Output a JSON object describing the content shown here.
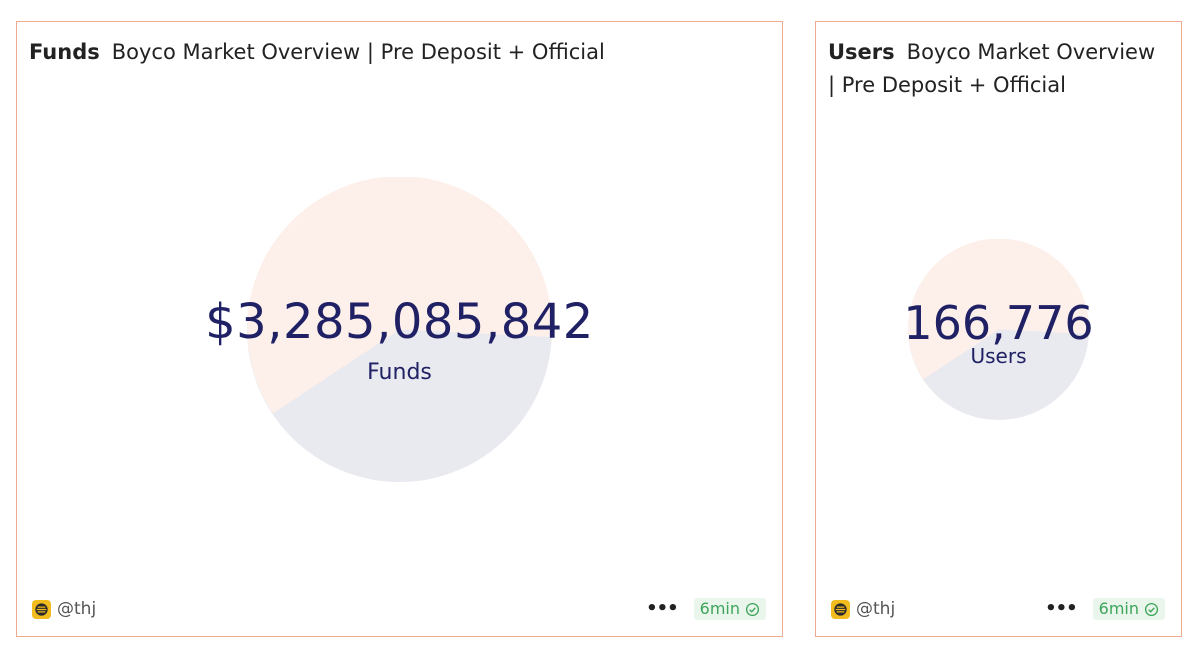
{
  "cards": [
    {
      "id": "funds",
      "title_strong": "Funds",
      "title_rest": "Boyco Market Overview | Pre Deposit + Official",
      "counter_value": "$3,285,085,842",
      "counter_label": "Funds",
      "author": "@thj",
      "freshness": "6min",
      "more_label": "•••"
    },
    {
      "id": "users",
      "title_strong": "Users",
      "title_rest": "Boyco Market Overview | Pre Deposit + Official",
      "counter_value": "166,776",
      "counter_label": "Users",
      "author": "@thj",
      "freshness": "6min",
      "more_label": "•••"
    }
  ],
  "colors": {
    "card_border": "#efab90",
    "pie_primary": "#fdf0eb",
    "pie_secondary": "#e9e9f0",
    "counter_text": "#1f2164",
    "badge_bg": "#eaf6ec",
    "badge_text": "#3da55a",
    "avatar_bg": "#f2bb1e"
  },
  "icons": {
    "avatar": "bear-avatar-icon",
    "more": "more-horizontal-icon",
    "fresh": "check-circle-icon"
  }
}
